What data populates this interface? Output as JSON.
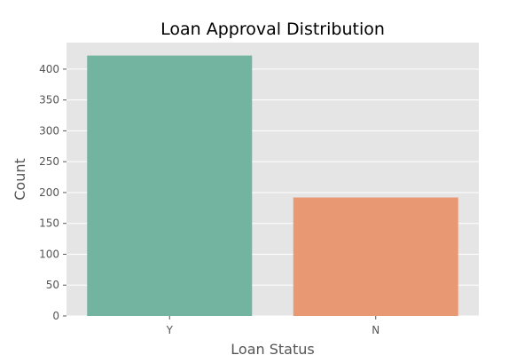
{
  "chart_data": {
    "type": "bar",
    "title": "Loan Approval Distribution",
    "xlabel": "Loan Status",
    "ylabel": "Count",
    "categories": [
      "Y",
      "N"
    ],
    "values": [
      422,
      192
    ],
    "ylim": [
      0,
      443
    ],
    "yticks": [
      0,
      50,
      100,
      150,
      200,
      250,
      300,
      350,
      400
    ],
    "grid": true,
    "colors": {
      "background": "#e5e5e5",
      "bars": [
        "#73b4a0",
        "#e99874"
      ]
    }
  }
}
